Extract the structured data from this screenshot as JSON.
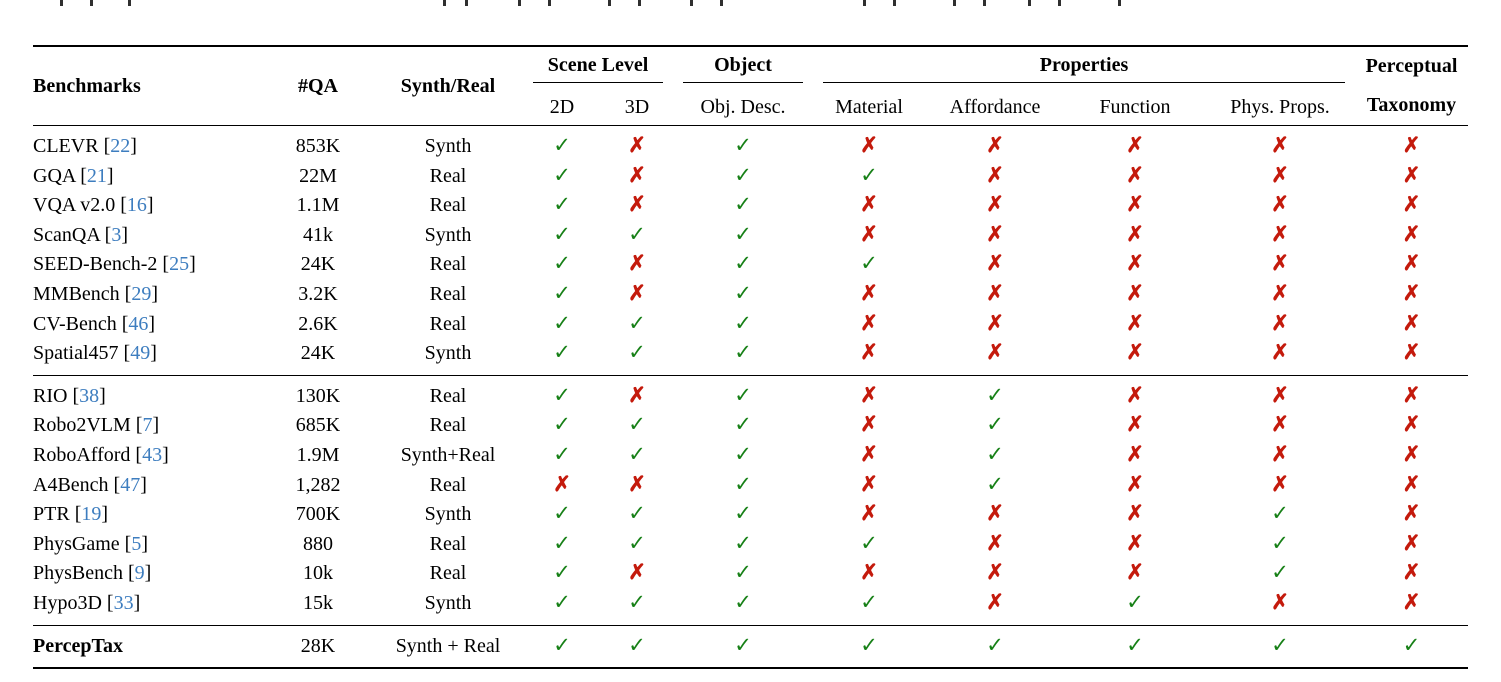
{
  "colors": {
    "check_green": "#178017",
    "cross_red": "#c41a0c",
    "cite_blue": "#3d7dbf",
    "rule_black": "#000000"
  },
  "table": {
    "header": {
      "benchmarks": "Benchmarks",
      "qa": "#QA",
      "synth_real": "Synth/Real",
      "scene_level": "Scene Level",
      "scene_sub": [
        "2D",
        "3D"
      ],
      "object": "Object",
      "object_sub": "Obj. Desc.",
      "properties": "Properties",
      "properties_sub": [
        "Material",
        "Affordance",
        "Function",
        "Phys. Props."
      ],
      "perceptual_line1": "Perceptual",
      "perceptual_line2": "Taxonomy"
    },
    "marks": {
      "check": "✓",
      "cross": "✗"
    },
    "groups": [
      {
        "id": "g1",
        "rows": [
          {
            "name": "CLEVR",
            "cite": "22",
            "qa": "853K",
            "sr": "Synth",
            "marks": [
              "c",
              "x",
              "c",
              "x",
              "x",
              "x",
              "x",
              "x"
            ]
          },
          {
            "name": "GQA",
            "cite": "21",
            "qa": "22M",
            "sr": "Real",
            "marks": [
              "c",
              "x",
              "c",
              "c",
              "x",
              "x",
              "x",
              "x"
            ]
          },
          {
            "name": "VQA v2.0",
            "cite": "16",
            "qa": "1.1M",
            "sr": "Real",
            "marks": [
              "c",
              "x",
              "c",
              "x",
              "x",
              "x",
              "x",
              "x"
            ]
          },
          {
            "name": "ScanQA",
            "cite": "3",
            "qa": "41k",
            "sr": "Synth",
            "marks": [
              "c",
              "c",
              "c",
              "x",
              "x",
              "x",
              "x",
              "x"
            ]
          },
          {
            "name": "SEED-Bench-2",
            "cite": "25",
            "qa": "24K",
            "sr": "Real",
            "marks": [
              "c",
              "x",
              "c",
              "c",
              "x",
              "x",
              "x",
              "x"
            ]
          },
          {
            "name": "MMBench",
            "cite": "29",
            "qa": "3.2K",
            "sr": "Real",
            "marks": [
              "c",
              "x",
              "c",
              "x",
              "x",
              "x",
              "x",
              "x"
            ]
          },
          {
            "name": "CV-Bench",
            "cite": "46",
            "qa": "2.6K",
            "sr": "Real",
            "marks": [
              "c",
              "c",
              "c",
              "x",
              "x",
              "x",
              "x",
              "x"
            ]
          },
          {
            "name": "Spatial457",
            "cite": "49",
            "qa": "24K",
            "sr": "Synth",
            "marks": [
              "c",
              "c",
              "c",
              "x",
              "x",
              "x",
              "x",
              "x"
            ]
          }
        ]
      },
      {
        "id": "g2",
        "rows": [
          {
            "name": "RIO",
            "cite": "38",
            "qa": "130K",
            "sr": "Real",
            "marks": [
              "c",
              "x",
              "c",
              "x",
              "c",
              "x",
              "x",
              "x"
            ]
          },
          {
            "name": "Robo2VLM",
            "cite": "7",
            "qa": "685K",
            "sr": "Real",
            "marks": [
              "c",
              "c",
              "c",
              "x",
              "c",
              "x",
              "x",
              "x"
            ]
          },
          {
            "name": "RoboAfford",
            "cite": "43",
            "qa": "1.9M",
            "sr": "Synth+Real",
            "marks": [
              "c",
              "c",
              "c",
              "x",
              "c",
              "x",
              "x",
              "x"
            ]
          },
          {
            "name": "A4Bench",
            "cite": "47",
            "qa": "1,282",
            "sr": "Real",
            "marks": [
              "x",
              "x",
              "c",
              "x",
              "c",
              "x",
              "x",
              "x"
            ]
          },
          {
            "name": "PTR",
            "cite": "19",
            "qa": "700K",
            "sr": "Synth",
            "marks": [
              "c",
              "c",
              "c",
              "x",
              "x",
              "x",
              "c",
              "x"
            ]
          },
          {
            "name": "PhysGame",
            "cite": "5",
            "qa": "880",
            "sr": "Real",
            "marks": [
              "c",
              "c",
              "c",
              "c",
              "x",
              "x",
              "c",
              "x"
            ]
          },
          {
            "name": "PhysBench",
            "cite": "9",
            "qa": "10k",
            "sr": "Real",
            "marks": [
              "c",
              "x",
              "c",
              "x",
              "x",
              "x",
              "c",
              "x"
            ]
          },
          {
            "name": "Hypo3D",
            "cite": "33",
            "qa": "15k",
            "sr": "Synth",
            "marks": [
              "c",
              "c",
              "c",
              "c",
              "x",
              "c",
              "x",
              "x"
            ]
          }
        ]
      },
      {
        "id": "g3",
        "rows": [
          {
            "name": "PercepTax",
            "cite": null,
            "bold": true,
            "qa": "28K",
            "sr": "Synth + Real",
            "marks": [
              "c",
              "c",
              "c",
              "c",
              "c",
              "c",
              "c",
              "c"
            ]
          }
        ]
      }
    ]
  }
}
